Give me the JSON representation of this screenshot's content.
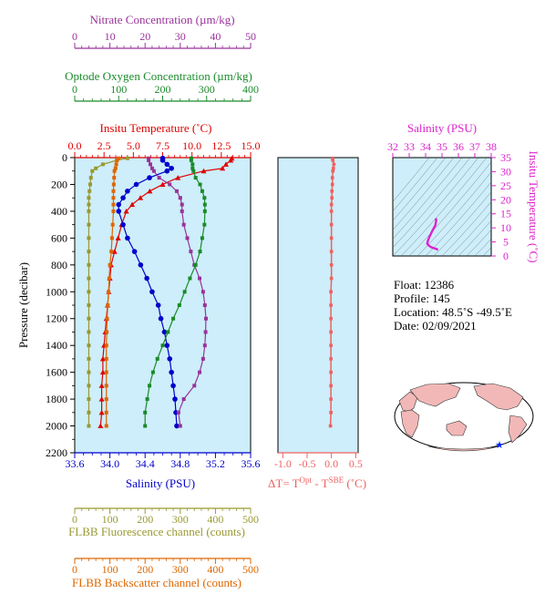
{
  "colors": {
    "nitrate": "#993399",
    "oxygen": "#1a8a2a",
    "temperature": "#e00000",
    "salinity": "#0000cc",
    "fluorescence": "#999933",
    "backscatter": "#dd6600",
    "delta_t": "#f06060",
    "ts_axis": "#dd22cc",
    "plot_bg": "#cdeefa"
  },
  "axes": {
    "nitrate": {
      "label": "Nitrate Concentration (µm/kg)",
      "ticks": [
        "0",
        "10",
        "20",
        "30",
        "40",
        "50"
      ]
    },
    "oxygen": {
      "label": "Optode Oxygen Concentration (µm/kg)",
      "ticks": [
        "0",
        "100",
        "200",
        "300",
        "400"
      ]
    },
    "temperature": {
      "label": "Insitu Temperature (˚C)",
      "ticks": [
        "0.0",
        "2.5",
        "5.0",
        "7.5",
        "10.0",
        "12.5",
        "15.0"
      ]
    },
    "salinity": {
      "label": "Salinity (PSU)",
      "ticks": [
        "33.6",
        "34.0",
        "34.4",
        "34.8",
        "35.2",
        "35.6"
      ]
    },
    "pressure": {
      "label": "Pressure (decibar)",
      "ticks": [
        "0",
        "200",
        "400",
        "600",
        "800",
        "1000",
        "1200",
        "1400",
        "1600",
        "1800",
        "2000",
        "2200"
      ]
    },
    "fluorescence": {
      "label": "FLBB Fluorescence channel (counts)",
      "ticks": [
        "0",
        "100",
        "200",
        "300",
        "400",
        "500"
      ]
    },
    "backscatter": {
      "label": "FLBB Backscatter channel (counts)",
      "ticks": [
        "0",
        "100",
        "200",
        "300",
        "400",
        "500"
      ]
    },
    "delta_t": {
      "label_prefix": "ΔT= T",
      "label_sup1": "Opt",
      "label_mid": " - T",
      "label_sup2": "SBE",
      "label_suffix": " (˚C)",
      "ticks": [
        "-1.0",
        "-0.5",
        "0.0",
        "0.5"
      ]
    },
    "ts_salinity": {
      "label": "Salinity (PSU)",
      "ticks": [
        "32",
        "33",
        "34",
        "35",
        "36",
        "37",
        "38"
      ]
    },
    "ts_temperature": {
      "label": "Insitu Temperature (˚C)",
      "ticks": [
        "0",
        "5",
        "10",
        "15",
        "20",
        "25",
        "30",
        "35"
      ]
    }
  },
  "info": {
    "float": "Float:  12386",
    "profile": "Profile:  145",
    "location": "Location:  48.5˚S  -49.5˚E",
    "date": "Date:  02/09/2021"
  },
  "chart_data": {
    "type": "line",
    "ylabel": "Pressure (decibar)",
    "ylim": [
      2200,
      0
    ],
    "pressure": [
      5,
      20,
      50,
      80,
      100,
      150,
      200,
      250,
      300,
      350,
      400,
      500,
      600,
      700,
      800,
      900,
      1000,
      1100,
      1200,
      1300,
      1400,
      1500,
      1600,
      1700,
      1800,
      1900,
      2000
    ],
    "series": [
      {
        "name": "Insitu Temperature",
        "xlim": [
          0,
          15
        ],
        "values": [
          13.4,
          13.3,
          12.9,
          12.6,
          11.0,
          8.8,
          7.5,
          6.4,
          5.6,
          4.9,
          4.4,
          4.0,
          3.7,
          3.4,
          3.1,
          3.0,
          2.9,
          2.8,
          2.7,
          2.6,
          2.5,
          2.4,
          2.4,
          2.3,
          2.3,
          2.3,
          2.2
        ]
      },
      {
        "name": "Salinity",
        "xlim": [
          33.6,
          35.6
        ],
        "values": [
          34.6,
          34.6,
          34.65,
          34.7,
          34.65,
          34.45,
          34.3,
          34.2,
          34.15,
          34.1,
          34.1,
          34.15,
          34.2,
          34.28,
          34.35,
          34.42,
          34.48,
          34.55,
          34.58,
          34.62,
          34.65,
          34.68,
          34.7,
          34.72,
          34.74,
          34.75,
          34.76
        ]
      },
      {
        "name": "Nitrate Concentration",
        "xlim": [
          0,
          50
        ],
        "values": [
          21,
          21,
          21.5,
          22,
          22.5,
          24,
          27,
          29,
          30,
          30.5,
          30.5,
          31,
          32,
          33,
          34,
          35.5,
          36.5,
          37,
          37.3,
          37.2,
          37,
          36.5,
          35.5,
          34,
          31,
          29.5,
          30
        ]
      },
      {
        "name": "Optode Oxygen Concentration",
        "xlim": [
          0,
          400
        ],
        "values": [
          265,
          265,
          268,
          268,
          270,
          275,
          285,
          290,
          295,
          296,
          296,
          295,
          290,
          285,
          275,
          262,
          250,
          238,
          224,
          212,
          200,
          188,
          178,
          170,
          165,
          160,
          160
        ]
      },
      {
        "name": "FLBB Fluorescence channel",
        "xlim": [
          0,
          500
        ],
        "values": [
          150,
          120,
          80,
          60,
          50,
          46,
          44,
          42,
          40,
          40,
          40,
          40,
          40,
          40,
          40,
          40,
          40,
          40,
          40,
          40,
          40,
          40,
          40,
          40,
          40,
          40,
          40
        ]
      },
      {
        "name": "FLBB Backscatter channel",
        "xlim": [
          0,
          500
        ],
        "values": [
          125,
          120,
          118,
          116,
          113,
          112,
          111,
          110,
          110,
          110,
          110,
          108,
          106,
          104,
          100,
          98,
          96,
          94,
          92,
          91,
          90,
          90,
          90,
          90,
          90,
          90,
          90
        ]
      },
      {
        "name": "Delta T",
        "xlim": [
          -1.1,
          0.55
        ],
        "values": [
          0.02,
          0.03,
          0.05,
          0.04,
          0.03,
          0.02,
          0.02,
          0.01,
          0.01,
          0.0,
          0.0,
          0.0,
          0.0,
          0.0,
          0.0,
          0.0,
          -0.01,
          -0.01,
          -0.01,
          -0.01,
          -0.01,
          -0.01,
          -0.01,
          -0.01,
          -0.01,
          -0.01,
          -0.02
        ]
      }
    ],
    "ts_points": [
      {
        "salinity": 34.6,
        "temperature": 13.4
      },
      {
        "salinity": 34.65,
        "temperature": 12.9
      },
      {
        "salinity": 34.6,
        "temperature": 11.0
      },
      {
        "salinity": 34.4,
        "temperature": 8.8
      },
      {
        "salinity": 34.25,
        "temperature": 7.0
      },
      {
        "salinity": 34.15,
        "temperature": 5.6
      },
      {
        "salinity": 34.1,
        "temperature": 4.4
      },
      {
        "salinity": 34.2,
        "temperature": 3.7
      },
      {
        "salinity": 34.35,
        "temperature": 3.1
      },
      {
        "salinity": 34.5,
        "temperature": 2.8
      },
      {
        "salinity": 34.65,
        "temperature": 2.5
      },
      {
        "salinity": 34.76,
        "temperature": 2.2
      }
    ]
  }
}
